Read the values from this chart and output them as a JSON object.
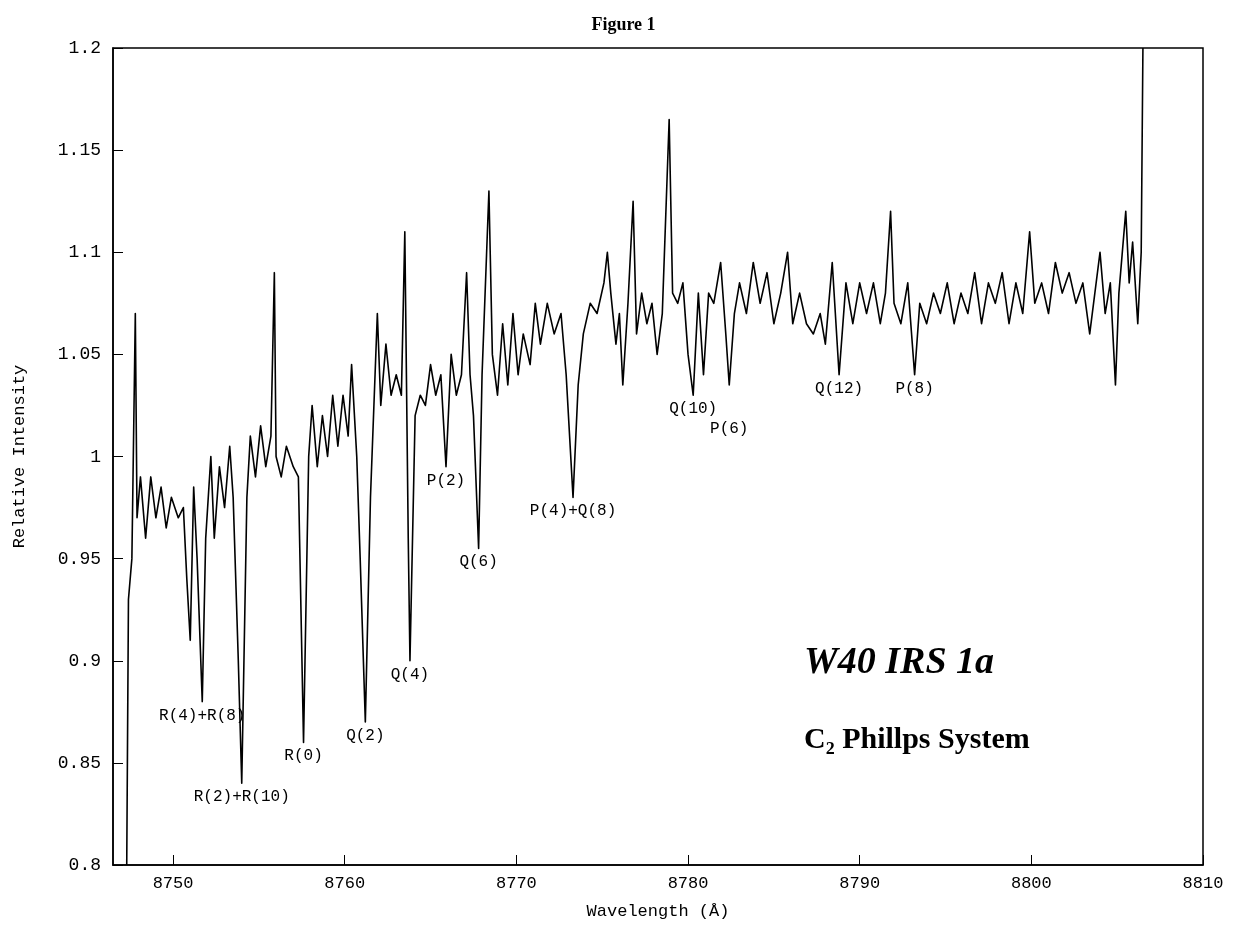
{
  "chart_data": {
    "type": "line",
    "title": "Figure 1",
    "xlabel": "Wavelength (Å)",
    "ylabel": "Relative Intensity",
    "xlim": [
      8746.5,
      8810
    ],
    "xticks": [
      8750,
      8760,
      8770,
      8780,
      8790,
      8800,
      8810
    ],
    "ylim": [
      0.8,
      1.2
    ],
    "yticks": [
      0.8,
      0.85,
      0.9,
      0.95,
      1,
      1.05,
      1.1,
      1.15,
      1.2
    ],
    "grid": false,
    "marker": "none",
    "line_style": "solid",
    "annotations": [
      {
        "text": "R(4)+R(8)",
        "x": 8751.7,
        "y": 0.88
      },
      {
        "text": "R(2)+R(10)",
        "x": 8754.0,
        "y": 0.84
      },
      {
        "text": "R(0)",
        "x": 8757.6,
        "y": 0.86
      },
      {
        "text": "Q(2)",
        "x": 8761.2,
        "y": 0.87
      },
      {
        "text": "Q(4)",
        "x": 8763.8,
        "y": 0.9
      },
      {
        "text": "P(2)",
        "x": 8765.9,
        "y": 0.995
      },
      {
        "text": "Q(6)",
        "x": 8767.8,
        "y": 0.955
      },
      {
        "text": "P(4)+Q(8)",
        "x": 8773.3,
        "y": 0.98
      },
      {
        "text": "Q(10)",
        "x": 8780.3,
        "y": 1.03
      },
      {
        "text": "P(6)",
        "x": 8782.4,
        "y": 1.035
      },
      {
        "text": "Q(12)",
        "x": 8788.8,
        "y": 1.04
      },
      {
        "text": "P(8)",
        "x": 8793.2,
        "y": 1.04
      },
      "W40 IRS 1a",
      "C₂ Phillps System"
    ],
    "series": [
      {
        "color": "#000000",
        "x": [
          8747.3,
          8747.4,
          8747.6,
          8747.8,
          8747.9,
          8748.1,
          8748.4,
          8748.7,
          8749.0,
          8749.3,
          8749.6,
          8749.9,
          8750.3,
          8750.6,
          8750.8,
          8751.0,
          8751.2,
          8751.4,
          8751.7,
          8751.9,
          8752.2,
          8752.4,
          8752.7,
          8753.0,
          8753.3,
          8753.5,
          8753.8,
          8754.0,
          8754.3,
          8754.5,
          8754.8,
          8755.1,
          8755.4,
          8755.7,
          8755.9,
          8756.0,
          8756.3,
          8756.6,
          8757.0,
          8757.3,
          8757.6,
          8757.9,
          8758.1,
          8758.4,
          8758.7,
          8759.0,
          8759.3,
          8759.6,
          8759.9,
          8760.2,
          8760.4,
          8760.7,
          8760.9,
          8761.2,
          8761.5,
          8761.9,
          8762.1,
          8762.4,
          8762.7,
          8763.0,
          8763.3,
          8763.5,
          8763.7,
          8763.8,
          8764.1,
          8764.4,
          8764.7,
          8765.0,
          8765.3,
          8765.6,
          8765.9,
          8766.2,
          8766.5,
          8766.8,
          8767.1,
          8767.3,
          8767.5,
          8767.8,
          8768.0,
          8768.4,
          8768.6,
          8768.9,
          8769.2,
          8769.5,
          8769.8,
          8770.1,
          8770.4,
          8770.8,
          8771.1,
          8771.4,
          8771.8,
          8772.2,
          8772.6,
          8772.9,
          8773.3,
          8773.6,
          8773.9,
          8774.3,
          8774.7,
          8775.1,
          8775.3,
          8775.5,
          8775.8,
          8776.0,
          8776.2,
          8776.5,
          8776.8,
          8777.0,
          8777.3,
          8777.6,
          8777.9,
          8778.2,
          8778.5,
          8778.9,
          8779.1,
          8779.4,
          8779.7,
          8780.0,
          8780.3,
          8780.6,
          8780.9,
          8781.2,
          8781.5,
          8781.9,
          8782.2,
          8782.4,
          8782.7,
          8783.0,
          8783.4,
          8783.8,
          8784.2,
          8784.6,
          8785.0,
          8785.4,
          8785.8,
          8786.1,
          8786.5,
          8786.9,
          8787.3,
          8787.7,
          8788.0,
          8788.4,
          8788.8,
          8789.2,
          8789.6,
          8790.0,
          8790.4,
          8790.8,
          8791.2,
          8791.5,
          8791.8,
          8792.0,
          8792.4,
          8792.8,
          8793.2,
          8793.5,
          8793.9,
          8794.3,
          8794.7,
          8795.1,
          8795.5,
          8795.9,
          8796.3,
          8796.7,
          8797.1,
          8797.5,
          8797.9,
          8798.3,
          8798.7,
          8799.1,
          8799.5,
          8799.9,
          8800.2,
          8800.6,
          8801.0,
          8801.4,
          8801.8,
          8802.2,
          8802.6,
          8803.0,
          8803.4,
          8804.0,
          8804.3,
          8804.6,
          8804.9,
          8805.1,
          8805.5,
          8805.7,
          8805.9,
          8806.2,
          8806.4,
          8806.5
        ],
        "values": [
          0.8,
          0.93,
          0.95,
          1.07,
          0.97,
          0.99,
          0.96,
          0.99,
          0.97,
          0.985,
          0.965,
          0.98,
          0.97,
          0.975,
          0.94,
          0.91,
          0.985,
          0.95,
          0.88,
          0.96,
          1.0,
          0.96,
          0.995,
          0.975,
          1.005,
          0.98,
          0.9,
          0.84,
          0.98,
          1.01,
          0.99,
          1.015,
          0.995,
          1.01,
          1.09,
          1.0,
          0.99,
          1.005,
          0.995,
          0.99,
          0.86,
          1.0,
          1.025,
          0.995,
          1.02,
          1.0,
          1.03,
          1.005,
          1.03,
          1.01,
          1.045,
          1.0,
          0.95,
          0.87,
          0.98,
          1.07,
          1.025,
          1.055,
          1.03,
          1.04,
          1.03,
          1.11,
          0.96,
          0.9,
          1.02,
          1.03,
          1.025,
          1.045,
          1.03,
          1.04,
          0.995,
          1.05,
          1.03,
          1.04,
          1.09,
          1.04,
          1.02,
          0.955,
          1.04,
          1.13,
          1.05,
          1.03,
          1.065,
          1.035,
          1.07,
          1.04,
          1.06,
          1.045,
          1.075,
          1.055,
          1.075,
          1.06,
          1.07,
          1.04,
          0.98,
          1.035,
          1.06,
          1.075,
          1.07,
          1.085,
          1.1,
          1.08,
          1.055,
          1.07,
          1.035,
          1.075,
          1.125,
          1.06,
          1.08,
          1.065,
          1.075,
          1.05,
          1.07,
          1.165,
          1.08,
          1.075,
          1.085,
          1.05,
          1.03,
          1.08,
          1.04,
          1.08,
          1.075,
          1.095,
          1.06,
          1.035,
          1.07,
          1.085,
          1.07,
          1.095,
          1.075,
          1.09,
          1.065,
          1.08,
          1.1,
          1.065,
          1.08,
          1.065,
          1.06,
          1.07,
          1.055,
          1.095,
          1.04,
          1.085,
          1.065,
          1.085,
          1.07,
          1.085,
          1.065,
          1.08,
          1.12,
          1.075,
          1.065,
          1.085,
          1.04,
          1.075,
          1.065,
          1.08,
          1.07,
          1.085,
          1.065,
          1.08,
          1.07,
          1.09,
          1.065,
          1.085,
          1.075,
          1.09,
          1.065,
          1.085,
          1.07,
          1.11,
          1.075,
          1.085,
          1.07,
          1.095,
          1.08,
          1.09,
          1.075,
          1.085,
          1.06,
          1.1,
          1.07,
          1.085,
          1.035,
          1.08,
          1.12,
          1.085,
          1.105,
          1.065,
          1.1,
          1.2
        ]
      }
    ]
  }
}
